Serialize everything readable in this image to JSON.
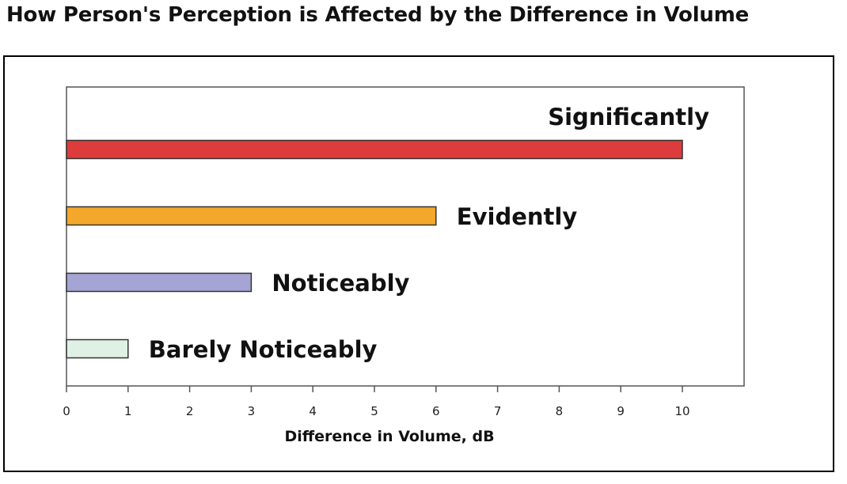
{
  "chart_data": {
    "type": "bar",
    "orientation": "horizontal",
    "title": "How Person's Perception is Affected by the Difference in Volume",
    "xlabel": "Difference in Volume, dB",
    "ylabel": "",
    "xlim": [
      0,
      11
    ],
    "xticks": [
      "0",
      "1",
      "2",
      "3",
      "4",
      "5",
      "6",
      "7",
      "8",
      "9",
      "10"
    ],
    "categories": [
      "Significantly",
      "Evidently",
      "Noticeably",
      "Barely Noticeably"
    ],
    "values": [
      10,
      6,
      3,
      1
    ],
    "colors": [
      "#dd3c3c",
      "#f3a72b",
      "#a6a4d4",
      "#dff0e4"
    ],
    "grid": false,
    "legend": "none"
  }
}
